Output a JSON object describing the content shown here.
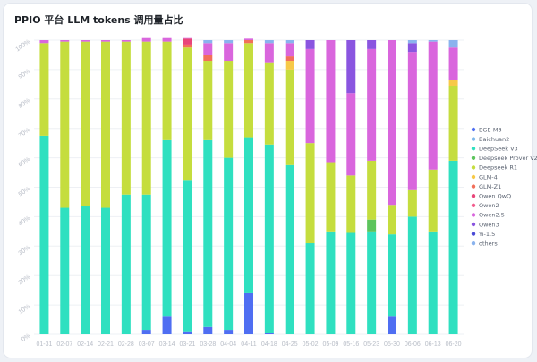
{
  "title": "PPIO 平台 LLM tokens 调用量占比",
  "chart_data": {
    "type": "bar",
    "stacked": true,
    "title": "PPIO 平台 LLM tokens 调用量占比",
    "xlabel": "",
    "ylabel": "",
    "ylim": [
      0,
      100
    ],
    "yticks": [
      "0%",
      "10%",
      "20%",
      "30%",
      "40%",
      "50%",
      "60%",
      "70%",
      "80%",
      "90%",
      "100%"
    ],
    "grid": true,
    "legend_position": "right",
    "categories": [
      "01-31",
      "02-07",
      "02-14",
      "02-21",
      "02-28",
      "03-07",
      "03-14",
      "03-21",
      "03-28",
      "04-04",
      "04-11",
      "04-18",
      "04-25",
      "05-02",
      "05-09",
      "05-16",
      "05-23",
      "05-30",
      "06-06",
      "06-13",
      "06-20"
    ],
    "series": [
      {
        "name": "BGE-M3",
        "color": "#4f6ef2",
        "values": [
          0,
          0,
          0,
          0,
          0,
          1.5,
          6,
          1,
          2.5,
          1.5,
          14,
          0.5,
          0,
          0,
          0,
          0,
          0,
          6,
          0,
          0,
          0
        ]
      },
      {
        "name": "Baichuan2",
        "color": "#7fb8ea",
        "values": [
          0,
          0,
          0,
          0,
          0,
          0,
          0,
          0,
          0,
          0,
          0,
          0,
          0,
          0,
          0,
          0,
          0,
          0,
          0,
          0,
          0
        ]
      },
      {
        "name": "DeepSeek V3",
        "color": "#2fe0c0",
        "values": [
          67.5,
          43,
          43.5,
          43,
          47.5,
          46,
          60,
          51.5,
          63.5,
          58.5,
          53,
          64,
          57.5,
          31,
          35,
          34.5,
          35,
          28,
          40,
          35,
          59
        ]
      },
      {
        "name": "Deepseek Prover V2",
        "color": "#5cc45c",
        "values": [
          0,
          0,
          0,
          0,
          0,
          0,
          0,
          0,
          0,
          0,
          0,
          0,
          0,
          0,
          0,
          0,
          4,
          0,
          0,
          0,
          0
        ]
      },
      {
        "name": "Deepseek R1",
        "color": "#c5dd3e",
        "values": [
          31.5,
          56.5,
          56,
          56.5,
          52,
          52,
          33.5,
          45,
          27,
          33,
          32,
          28,
          32.5,
          34,
          23.5,
          19.5,
          20,
          10,
          9,
          21,
          25.5
        ]
      },
      {
        "name": "GLM-4",
        "color": "#f7c948",
        "values": [
          0,
          0,
          0,
          0,
          0,
          0,
          0,
          0,
          0,
          0,
          0,
          0,
          3,
          0,
          0,
          0,
          0,
          0,
          0,
          0,
          2
        ]
      },
      {
        "name": "GLM-Z1",
        "color": "#f26f5a",
        "values": [
          0,
          0,
          0,
          0,
          0,
          0,
          0,
          1,
          2,
          0,
          1,
          0,
          1.5,
          0,
          0,
          0,
          0,
          0,
          0,
          0,
          0
        ]
      },
      {
        "name": "Qwen QwQ",
        "color": "#e8457a",
        "values": [
          0,
          0,
          0,
          0,
          0,
          0,
          0,
          2,
          0,
          0,
          0,
          0,
          0,
          0,
          0,
          0,
          0,
          0,
          0,
          0,
          0
        ]
      },
      {
        "name": "Qwen2",
        "color": "#f25c8e",
        "values": [
          0,
          0,
          0,
          0,
          0,
          0,
          0,
          0,
          0,
          0,
          0,
          0,
          0,
          0,
          0,
          0,
          0,
          0,
          0,
          0,
          0
        ]
      },
      {
        "name": "Qwen2.5",
        "color": "#d966dd",
        "values": [
          1,
          0.5,
          0.5,
          0.5,
          0.5,
          1.5,
          1.5,
          0.5,
          4,
          6,
          0.5,
          6.5,
          4.5,
          32,
          41.5,
          28,
          38,
          56,
          47,
          43.5,
          11
        ]
      },
      {
        "name": "Qwen3",
        "color": "#8a55e0",
        "values": [
          0,
          0,
          0,
          0,
          0,
          0,
          0,
          0,
          0,
          0,
          0,
          0,
          0,
          3,
          0,
          18,
          3,
          0,
          3,
          0,
          0
        ]
      },
      {
        "name": "Yi-1.5",
        "color": "#4a4ad6",
        "values": [
          0,
          0,
          0,
          0,
          0,
          0,
          0,
          0,
          0,
          0,
          0,
          0,
          0,
          0,
          0,
          0,
          0,
          0,
          0,
          0,
          0
        ]
      },
      {
        "name": "others",
        "color": "#8ab3ee",
        "values": [
          0,
          0,
          0,
          0,
          0,
          0,
          0,
          0,
          1,
          1,
          0,
          1,
          1,
          0,
          0,
          0,
          0,
          0,
          1,
          0.5,
          2.5
        ]
      }
    ]
  }
}
